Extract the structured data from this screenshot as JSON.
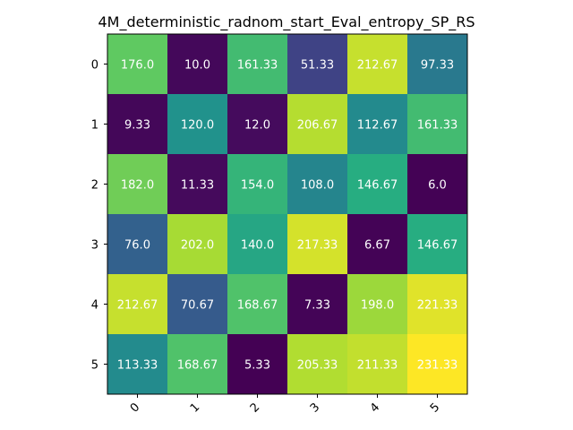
{
  "chart_data": {
    "type": "heatmap",
    "title": "4M_deterministic_radnom_start_Eval_entropy_SP_RS",
    "xlabel": "",
    "ylabel": "",
    "x_ticks": [
      "0",
      "1",
      "2",
      "3",
      "4",
      "5"
    ],
    "y_ticks": [
      "0",
      "1",
      "2",
      "3",
      "4",
      "5"
    ],
    "values": [
      [
        176.0,
        10.0,
        161.33,
        51.33,
        212.67,
        97.33
      ],
      [
        9.33,
        120.0,
        12.0,
        206.67,
        112.67,
        161.33
      ],
      [
        182.0,
        11.33,
        154.0,
        108.0,
        146.67,
        6.0
      ],
      [
        76.0,
        202.0,
        140.0,
        217.33,
        6.67,
        146.67
      ],
      [
        212.67,
        70.67,
        168.67,
        7.33,
        198.0,
        221.33
      ],
      [
        113.33,
        168.67,
        5.33,
        205.33,
        211.33,
        231.33
      ]
    ],
    "labels": [
      [
        "176.0",
        "10.0",
        "161.33",
        "51.33",
        "212.67",
        "97.33"
      ],
      [
        "9.33",
        "120.0",
        "12.0",
        "206.67",
        "112.67",
        "161.33"
      ],
      [
        "182.0",
        "11.33",
        "154.0",
        "108.0",
        "146.67",
        "6.0"
      ],
      [
        "76.0",
        "202.0",
        "140.0",
        "217.33",
        "6.67",
        "146.67"
      ],
      [
        "212.67",
        "70.67",
        "168.67",
        "7.33",
        "198.0",
        "221.33"
      ],
      [
        "113.33",
        "168.67",
        "5.33",
        "205.33",
        "211.33",
        "231.33"
      ]
    ],
    "colormap": "viridis",
    "grid": false,
    "legend": "none"
  }
}
